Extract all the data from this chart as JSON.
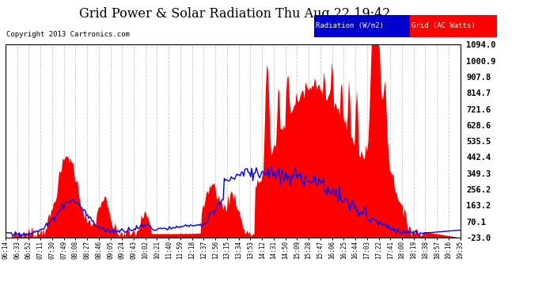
{
  "title": "Grid Power & Solar Radiation Thu Aug 22 19:42",
  "copyright": "Copyright 2013 Cartronics.com",
  "background_color": "#ffffff",
  "plot_bg_color": "#ffffff",
  "grid_color": "#bbbbbb",
  "y_min": -23.0,
  "y_max": 1094.0,
  "y_ticks": [
    -23.0,
    70.1,
    163.2,
    256.2,
    349.3,
    442.4,
    535.5,
    628.6,
    721.6,
    814.7,
    907.8,
    1000.9,
    1094.0
  ],
  "x_labels": [
    "06:14",
    "06:33",
    "06:52",
    "07:11",
    "07:30",
    "07:49",
    "08:08",
    "08:27",
    "08:46",
    "09:05",
    "09:24",
    "09:43",
    "10:02",
    "10:21",
    "11:40",
    "11:59",
    "12:18",
    "12:37",
    "12:56",
    "13:15",
    "13:34",
    "13:53",
    "14:12",
    "14:31",
    "14:50",
    "15:09",
    "15:28",
    "15:47",
    "16:06",
    "16:25",
    "16:44",
    "17:03",
    "17:22",
    "17:41",
    "18:00",
    "18:19",
    "18:38",
    "18:57",
    "19:16",
    "19:35"
  ],
  "radiation_color": "#0000ff",
  "grid_fill_color": "#ff0000",
  "legend_radiation_bg": "#0000cc",
  "legend_grid_bg": "#ff0000"
}
